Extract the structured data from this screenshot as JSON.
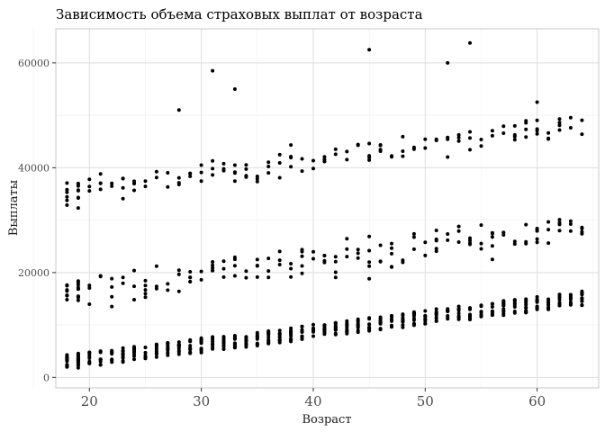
{
  "chart_data": {
    "type": "scatter",
    "title": "Зависимость объема страховых выплат от возраста",
    "xlabel": "Возраст",
    "ylabel": "Выплаты",
    "xlim": [
      17,
      65.5
    ],
    "ylim": [
      -2000,
      66500
    ],
    "xticks": [
      20,
      30,
      40,
      50,
      60
    ],
    "yticks": [
      0,
      20000,
      40000,
      60000
    ],
    "ytick_labels": [
      "0",
      "20000",
      "40000",
      "60000"
    ],
    "grid": true,
    "legend": "none",
    "point_color": "#000000"
  }
}
